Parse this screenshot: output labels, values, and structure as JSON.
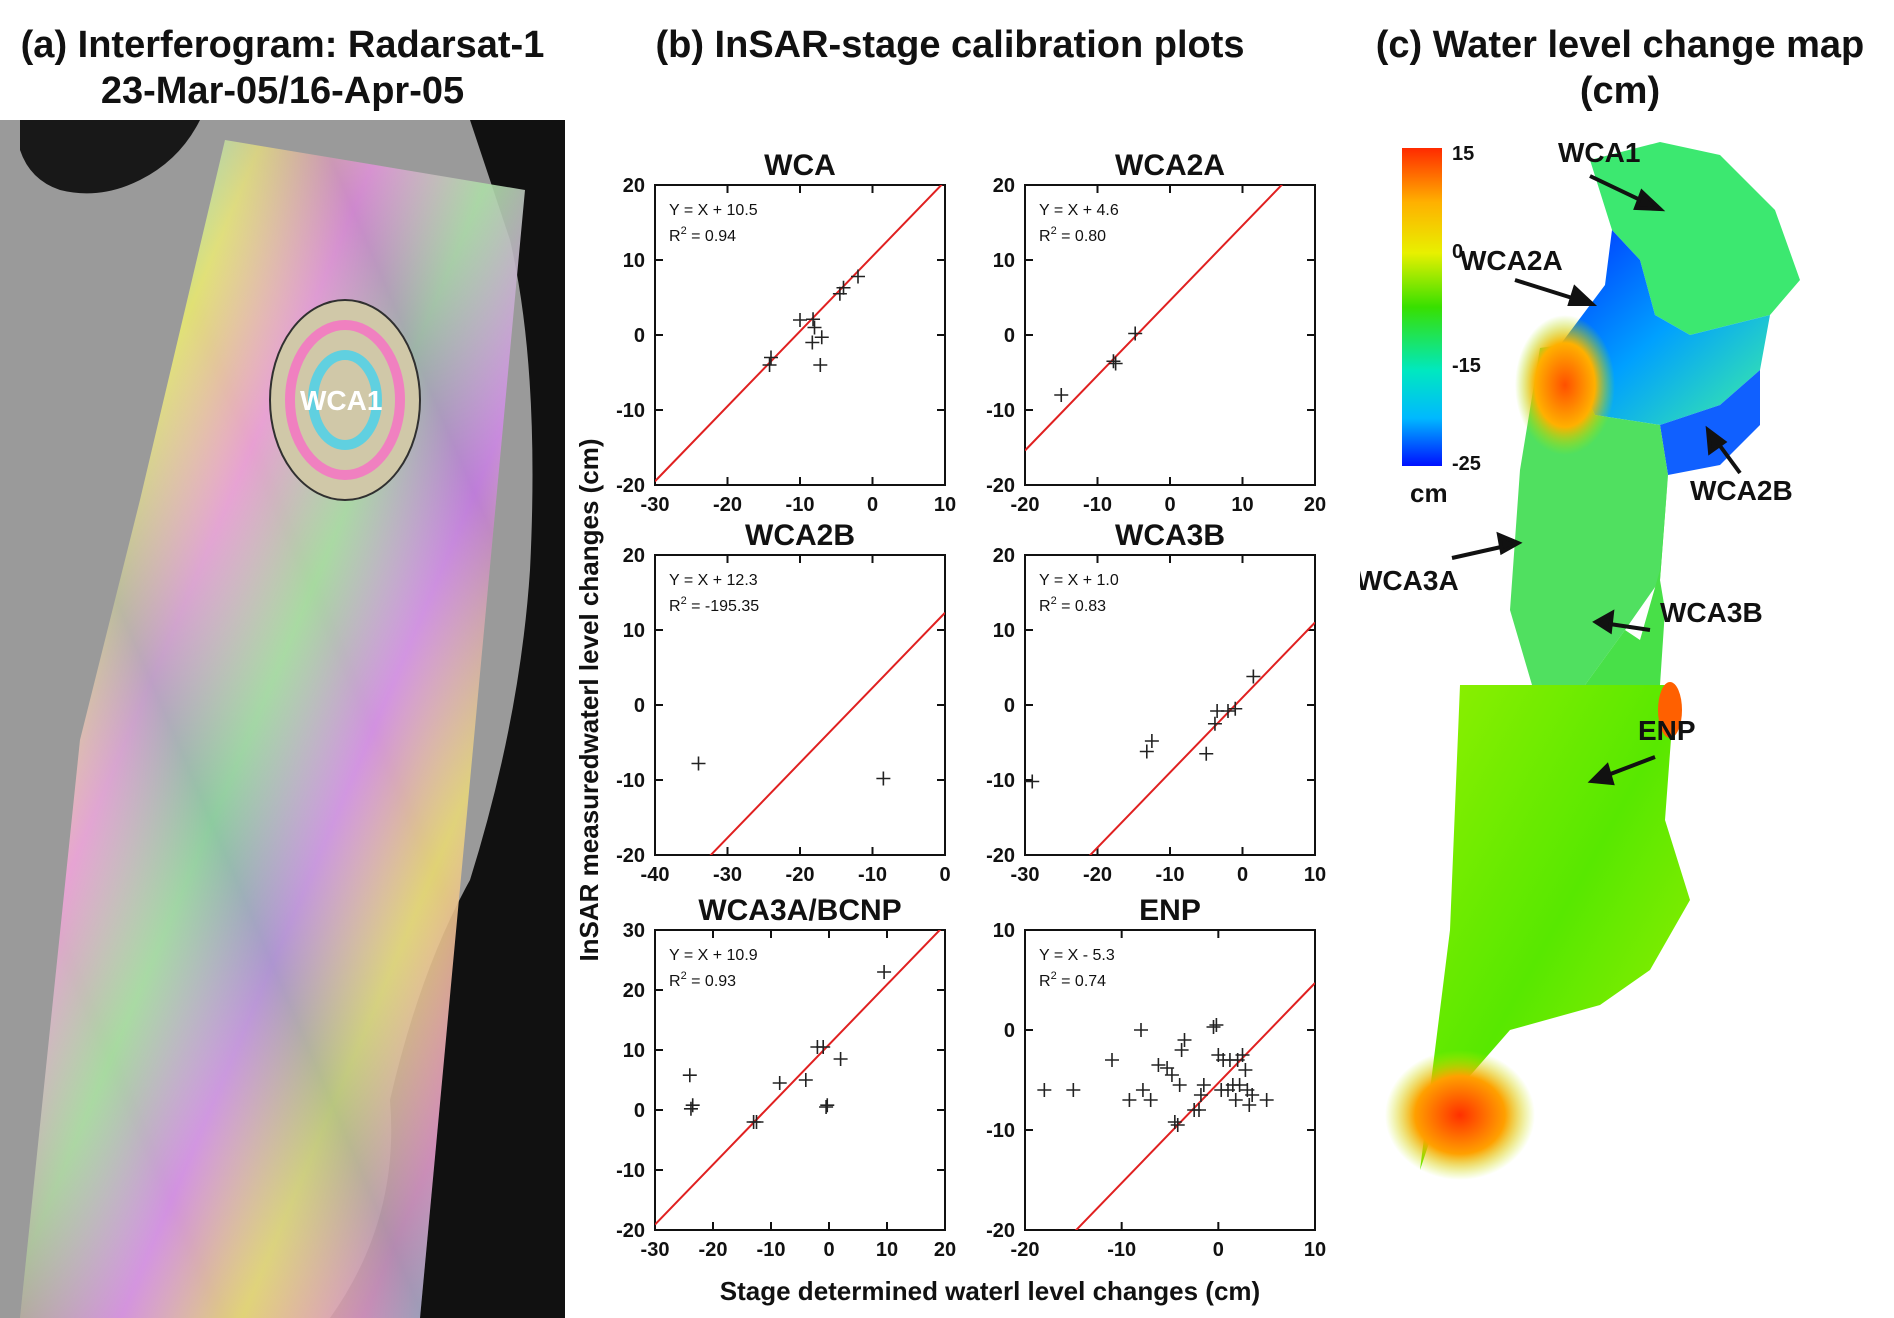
{
  "panel_a": {
    "title_line1": "(a) Interferogram: Radarsat-1",
    "title_line2": "23-Mar-05/16-Apr-05",
    "label_wca1": "WCA1"
  },
  "panel_b": {
    "title": "(b) InSAR-stage calibration plots",
    "ylabel": "InSAR measuredwaterl level changes (cm)",
    "xlabel": "Stage determined waterl level changes (cm)"
  },
  "panel_c": {
    "title_line1": "(c) Water level change map",
    "title_line2": "(cm)",
    "colorbar": {
      "ticks": [
        "15",
        "0",
        "-15",
        "-25"
      ],
      "unit": "cm",
      "colors": [
        "#ff2a00",
        "#ffb000",
        "#e8f000",
        "#38e000",
        "#00e8c0",
        "#00b8ff",
        "#0010ff"
      ]
    },
    "regions": [
      "WCA1",
      "WCA2A",
      "WCA2B",
      "WCA3A",
      "WCA3B",
      "ENP"
    ]
  },
  "chart_data": [
    {
      "type": "scatter",
      "title": "WCA",
      "equation": "Y = X + 10.5",
      "r2": "0.94",
      "xlim": [
        -30,
        10
      ],
      "ylim": [
        -20,
        20
      ],
      "xticks": [
        -30,
        -20,
        -10,
        0,
        10
      ],
      "yticks": [
        -20,
        -10,
        0,
        10,
        20
      ],
      "fit": {
        "slope": 1,
        "intercept": 10.5,
        "color": "#e02020"
      },
      "points": [
        [
          -14.2,
          -4
        ],
        [
          -14,
          -3
        ],
        [
          -10,
          2
        ],
        [
          -8.2,
          2.1
        ],
        [
          -8,
          1
        ],
        [
          -8.3,
          -1
        ],
        [
          -7,
          -0.3
        ],
        [
          -7.2,
          -4
        ],
        [
          -4.5,
          5.5
        ],
        [
          -4,
          6.3
        ],
        [
          -2,
          7.8
        ]
      ]
    },
    {
      "type": "scatter",
      "title": "WCA2A",
      "equation": "Y = X + 4.6",
      "r2": "0.80",
      "xlim": [
        -20,
        20
      ],
      "ylim": [
        -20,
        20
      ],
      "xticks": [
        -20,
        -10,
        0,
        10,
        20
      ],
      "yticks": [
        -20,
        -10,
        0,
        10,
        20
      ],
      "fit": {
        "slope": 1,
        "intercept": 4.6,
        "color": "#e02020"
      },
      "points": [
        [
          -15,
          -8
        ],
        [
          -7.8,
          -3.5
        ],
        [
          -7.5,
          -3.8
        ],
        [
          -4.8,
          0.2
        ]
      ]
    },
    {
      "type": "scatter",
      "title": "WCA2B",
      "equation": "Y = X + 12.3",
      "r2": "-195.35",
      "xlim": [
        -40,
        0
      ],
      "ylim": [
        -20,
        20
      ],
      "xticks": [
        -40,
        -30,
        -20,
        -10,
        0
      ],
      "yticks": [
        -20,
        -10,
        0,
        10,
        20
      ],
      "fit": {
        "slope": 1,
        "intercept": 12.3,
        "color": "#e02020"
      },
      "points": [
        [
          -34,
          -7.8
        ],
        [
          -8.5,
          -9.8
        ]
      ]
    },
    {
      "type": "scatter",
      "title": "WCA3B",
      "equation": "Y = X + 1.0",
      "r2": "0.83",
      "xlim": [
        -30,
        10
      ],
      "ylim": [
        -20,
        20
      ],
      "xticks": [
        -30,
        -20,
        -10,
        0,
        10
      ],
      "yticks": [
        -20,
        -10,
        0,
        10,
        20
      ],
      "fit": {
        "slope": 1,
        "intercept": 1.0,
        "color": "#e02020"
      },
      "points": [
        [
          -29,
          -10.2
        ],
        [
          -13.2,
          -6.2
        ],
        [
          -12.5,
          -4.8
        ],
        [
          -5,
          -6.5
        ],
        [
          -3.8,
          -2.5
        ],
        [
          -3.5,
          -0.8
        ],
        [
          -2,
          -0.8
        ],
        [
          -1,
          -0.5
        ],
        [
          1.5,
          3.8
        ]
      ]
    },
    {
      "type": "scatter",
      "title": "WCA3A/BCNP",
      "equation": "Y = X + 10.9",
      "r2": "0.93",
      "xlim": [
        -30,
        20
      ],
      "ylim": [
        -20,
        30
      ],
      "xticks": [
        -30,
        -20,
        -10,
        0,
        10,
        20
      ],
      "yticks": [
        -20,
        -10,
        0,
        10,
        20,
        30
      ],
      "fit": {
        "slope": 1,
        "intercept": 10.9,
        "color": "#e02020"
      },
      "points": [
        [
          -24,
          5.8
        ],
        [
          -23.8,
          0.2
        ],
        [
          -23.5,
          0.8
        ],
        [
          -13,
          -2
        ],
        [
          -12.5,
          -2
        ],
        [
          -8.5,
          4.5
        ],
        [
          -4,
          5
        ],
        [
          -2,
          10.5
        ],
        [
          -1,
          10.5
        ],
        [
          -0.5,
          0.5
        ],
        [
          -0.3,
          0.8
        ],
        [
          2,
          8.5
        ],
        [
          9.5,
          23
        ]
      ]
    },
    {
      "type": "scatter",
      "title": "ENP",
      "equation": "Y = X - 5.3",
      "r2": "0.74",
      "xlim": [
        -20,
        10
      ],
      "ylim": [
        -20,
        10
      ],
      "xticks": [
        -20,
        -10,
        0,
        10
      ],
      "yticks": [
        -20,
        -10,
        0,
        10
      ],
      "fit": {
        "slope": 1,
        "intercept": -5.3,
        "color": "#e02020"
      },
      "points": [
        [
          -18,
          -6
        ],
        [
          -15,
          -6
        ],
        [
          -11,
          -3
        ],
        [
          -9.2,
          -7
        ],
        [
          -8,
          0
        ],
        [
          -7.8,
          -6
        ],
        [
          -7,
          -7
        ],
        [
          -6.2,
          -3.5
        ],
        [
          -5.3,
          -3.8
        ],
        [
          -4.8,
          -4.5
        ],
        [
          -4.5,
          -9.2
        ],
        [
          -4.2,
          -9.5
        ],
        [
          -4,
          -5.5
        ],
        [
          -3.8,
          -2
        ],
        [
          -3.5,
          -1
        ],
        [
          -2.5,
          -8
        ],
        [
          -2,
          -8
        ],
        [
          -1.8,
          -6.5
        ],
        [
          -1.5,
          -5.5
        ],
        [
          -0.5,
          0.3
        ],
        [
          -0.2,
          0.5
        ],
        [
          0,
          -2.5
        ],
        [
          0.3,
          -6
        ],
        [
          0.5,
          -3
        ],
        [
          1,
          -6
        ],
        [
          1.2,
          -3
        ],
        [
          1.5,
          -5.5
        ],
        [
          1.8,
          -7
        ],
        [
          2,
          -3
        ],
        [
          2.2,
          -5.5
        ],
        [
          2.5,
          -2.5
        ],
        [
          2.8,
          -4
        ],
        [
          3,
          -6
        ],
        [
          3.2,
          -7.5
        ],
        [
          3.5,
          -6.5
        ],
        [
          5,
          -7
        ]
      ]
    }
  ]
}
